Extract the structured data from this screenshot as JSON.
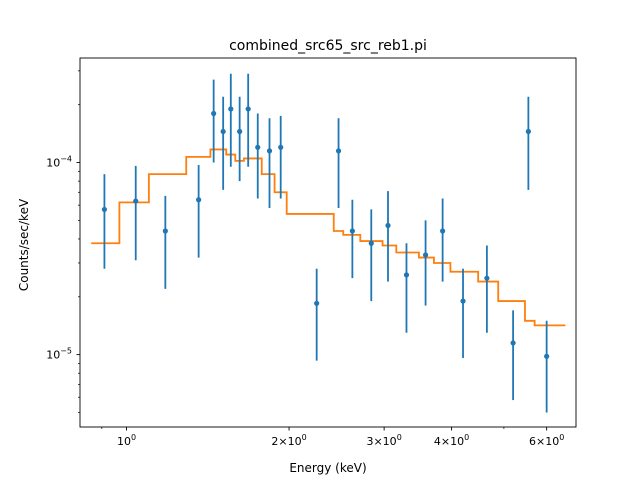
{
  "chart_data": {
    "type": "scatter",
    "title": "combined_src65_src_reb1.pi",
    "xlabel": "Energy (keV)",
    "ylabel": "Counts/sec/keV",
    "xscale": "log",
    "yscale": "log",
    "xlim": [
      0.82,
      6.8
    ],
    "ylim": [
      4.2e-06,
      0.00035
    ],
    "grid": false,
    "colors": {
      "data": "#1f77b4",
      "model": "#ff7f0e"
    },
    "x_ticks": [
      {
        "value": 1,
        "base": "10",
        "exp": "0"
      },
      {
        "value": 2,
        "base": "2×10",
        "exp": "0"
      },
      {
        "value": 3,
        "base": "3×10",
        "exp": "0"
      },
      {
        "value": 4,
        "base": "4×10",
        "exp": "0"
      },
      {
        "value": 6,
        "base": "6×10",
        "exp": "0"
      }
    ],
    "x_minor_ticks": [
      0.9,
      5
    ],
    "y_ticks": [
      {
        "value": 1e-05,
        "base": "10",
        "exp": "−5"
      },
      {
        "value": 0.0001,
        "base": "10",
        "exp": "−4"
      }
    ],
    "series": [
      {
        "kind": "errorbar",
        "points": [
          {
            "x": 0.91,
            "y": 5.7e-05,
            "ylo": 2.8e-05,
            "yhi": 8.7e-05
          },
          {
            "x": 1.04,
            "y": 6.3e-05,
            "ylo": 3.1e-05,
            "yhi": 9.6e-05
          },
          {
            "x": 1.18,
            "y": 4.4e-05,
            "ylo": 2.2e-05,
            "yhi": 6.7e-05
          },
          {
            "x": 1.36,
            "y": 6.4e-05,
            "ylo": 3.2e-05,
            "yhi": 9.7e-05
          },
          {
            "x": 1.45,
            "y": 0.00018,
            "ylo": 0.0001,
            "yhi": 0.00027
          },
          {
            "x": 1.51,
            "y": 0.000145,
            "ylo": 7.2e-05,
            "yhi": 0.00022
          },
          {
            "x": 1.56,
            "y": 0.00019,
            "ylo": 9.5e-05,
            "yhi": 0.00029
          },
          {
            "x": 1.62,
            "y": 0.000145,
            "ylo": 8e-05,
            "yhi": 0.00022
          },
          {
            "x": 1.68,
            "y": 0.00019,
            "ylo": 9.5e-05,
            "yhi": 0.00029
          },
          {
            "x": 1.75,
            "y": 0.00012,
            "ylo": 6.5e-05,
            "yhi": 0.00018
          },
          {
            "x": 1.84,
            "y": 0.000115,
            "ylo": 5.8e-05,
            "yhi": 0.00017
          },
          {
            "x": 1.93,
            "y": 0.00012,
            "ylo": 6.5e-05,
            "yhi": 0.000175
          },
          {
            "x": 2.25,
            "y": 1.85e-05,
            "ylo": 9.3e-06,
            "yhi": 2.8e-05
          },
          {
            "x": 2.47,
            "y": 0.000115,
            "ylo": 5.8e-05,
            "yhi": 0.00017
          },
          {
            "x": 2.62,
            "y": 4.4e-05,
            "ylo": 2.5e-05,
            "yhi": 6.4e-05
          },
          {
            "x": 2.84,
            "y": 3.8e-05,
            "ylo": 1.9e-05,
            "yhi": 5.7e-05
          },
          {
            "x": 3.05,
            "y": 4.7e-05,
            "ylo": 2.4e-05,
            "yhi": 7.1e-05
          },
          {
            "x": 3.3,
            "y": 2.6e-05,
            "ylo": 1.3e-05,
            "yhi": 3.8e-05
          },
          {
            "x": 3.58,
            "y": 3.3e-05,
            "ylo": 1.8e-05,
            "yhi": 5e-05
          },
          {
            "x": 3.85,
            "y": 4.4e-05,
            "ylo": 2.4e-05,
            "yhi": 6.5e-05
          },
          {
            "x": 4.2,
            "y": 1.9e-05,
            "ylo": 9.6e-06,
            "yhi": 2.8e-05
          },
          {
            "x": 4.65,
            "y": 2.5e-05,
            "ylo": 1.3e-05,
            "yhi": 3.7e-05
          },
          {
            "x": 5.2,
            "y": 1.15e-05,
            "ylo": 5.8e-06,
            "yhi": 1.7e-05
          },
          {
            "x": 5.55,
            "y": 0.000145,
            "ylo": 7.2e-05,
            "yhi": 0.00022
          },
          {
            "x": 6.0,
            "y": 9.8e-06,
            "ylo": 5e-06,
            "yhi": 1.5e-05
          }
        ]
      },
      {
        "kind": "step",
        "bins": [
          {
            "x0": 0.86,
            "x1": 0.97,
            "y": 3.8e-05
          },
          {
            "x0": 0.97,
            "x1": 1.1,
            "y": 6.2e-05
          },
          {
            "x0": 1.1,
            "x1": 1.29,
            "y": 8.7e-05
          },
          {
            "x0": 1.29,
            "x1": 1.43,
            "y": 0.000107
          },
          {
            "x0": 1.43,
            "x1": 1.53,
            "y": 0.000117
          },
          {
            "x0": 1.53,
            "x1": 1.59,
            "y": 0.00011
          },
          {
            "x0": 1.59,
            "x1": 1.65,
            "y": 0.000102
          },
          {
            "x0": 1.65,
            "x1": 1.78,
            "y": 0.000105
          },
          {
            "x0": 1.78,
            "x1": 1.88,
            "y": 8.7e-05
          },
          {
            "x0": 1.88,
            "x1": 1.98,
            "y": 7e-05
          },
          {
            "x0": 1.98,
            "x1": 2.42,
            "y": 5.4e-05
          },
          {
            "x0": 2.42,
            "x1": 2.52,
            "y": 4.4e-05
          },
          {
            "x0": 2.52,
            "x1": 2.71,
            "y": 4.2e-05
          },
          {
            "x0": 2.71,
            "x1": 2.98,
            "y": 3.9e-05
          },
          {
            "x0": 2.98,
            "x1": 3.16,
            "y": 3.7e-05
          },
          {
            "x0": 3.16,
            "x1": 3.48,
            "y": 3.4e-05
          },
          {
            "x0": 3.48,
            "x1": 3.71,
            "y": 3.2e-05
          },
          {
            "x0": 3.71,
            "x1": 3.98,
            "y": 3e-05
          },
          {
            "x0": 3.98,
            "x1": 4.48,
            "y": 2.7e-05
          },
          {
            "x0": 4.48,
            "x1": 4.88,
            "y": 2.4e-05
          },
          {
            "x0": 4.88,
            "x1": 5.47,
            "y": 1.9e-05
          },
          {
            "x0": 5.47,
            "x1": 5.7,
            "y": 1.5e-05
          },
          {
            "x0": 5.7,
            "x1": 6.5,
            "y": 1.42e-05
          }
        ]
      }
    ]
  }
}
